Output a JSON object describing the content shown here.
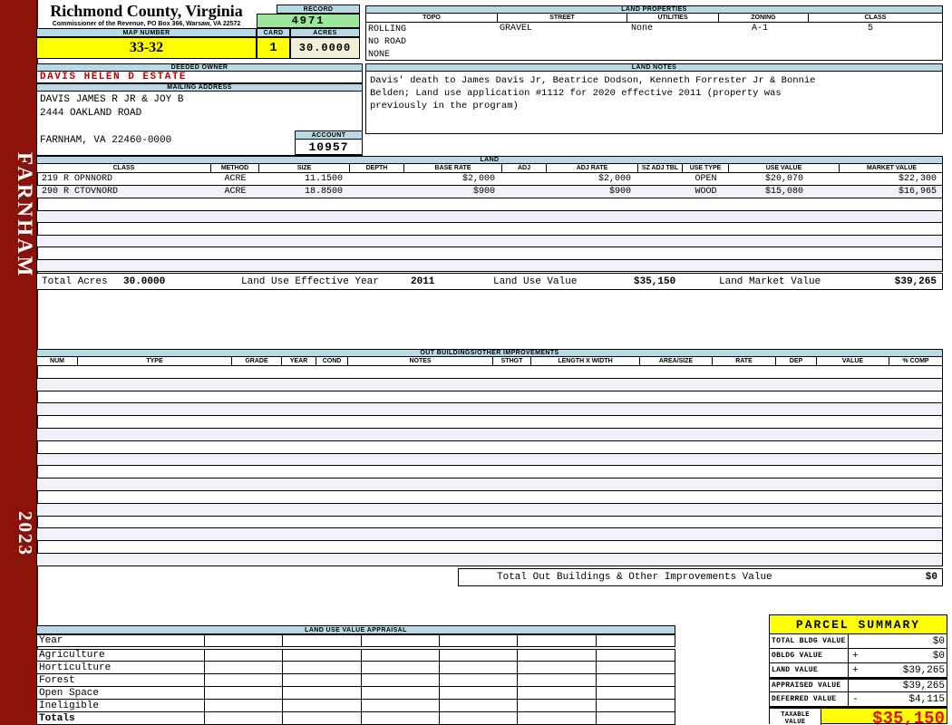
{
  "sidebar": {
    "district": "FARNHAM",
    "year": "2023"
  },
  "header": {
    "county_title": "Richmond County, Virginia",
    "county_subtitle": "Commissioner of the Revenue, PO Box 366, Warsaw, VA 22572",
    "record_label": "RECORD",
    "record_value": "4971",
    "map_number_label": "MAP NUMBER",
    "map_number_value": "33-32",
    "card_label": "CARD",
    "card_value": "1",
    "acres_label": "ACRES",
    "acres_value": "30.0000"
  },
  "land_properties": {
    "title": "LAND PROPERTIES",
    "columns": [
      "TOPO",
      "STREET",
      "UTILITIES",
      "ZONING",
      "CLASS"
    ],
    "topo_lines": [
      "ROLLING",
      "NO ROAD",
      "NONE"
    ],
    "street": "GRAVEL",
    "utilities": "None",
    "zoning": "A-1",
    "class": "5"
  },
  "owner": {
    "deeded_owner_label": "DEEDED OWNER",
    "deeded_owner": "DAVIS HELEN D ESTATE",
    "mailing_address_label": "MAILING ADDRESS",
    "address_lines": [
      "DAVIS JAMES R JR & JOY B",
      "2444 OAKLAND ROAD",
      "",
      "FARNHAM, VA 22460-0000"
    ],
    "account_label": "ACCOUNT",
    "account_value": "10957"
  },
  "land_notes": {
    "title": "LAND NOTES",
    "text": "Davis' death to James Davis Jr, Beatrice Dodson, Kenneth Forrester Jr & Bonnie\nBelden; Land use application #1112 for 2020 effective 2011 (property was\npreviously in the program)"
  },
  "land": {
    "title": "LAND",
    "columns": [
      "CLASS",
      "METHOD",
      "SIZE",
      "DEPTH",
      "BASE RATE",
      "ADJ",
      "ADJ RATE",
      "SZ ADJ TBL",
      "USE TYPE",
      "USE VALUE",
      "MARKET VALUE"
    ],
    "rows": [
      [
        "219 R OPNNORD",
        "ACRE",
        "11.1500",
        "",
        "$2,000",
        "",
        "$2,000",
        "",
        "OPEN",
        "$20,070",
        "$22,300"
      ],
      [
        "290 R CTOVNORD",
        "ACRE",
        "18.8500",
        "",
        "$900",
        "",
        "$900",
        "",
        "WOOD",
        "$15,080",
        "$16,965"
      ]
    ],
    "empty_row_count": 6,
    "totals": {
      "total_acres_label": "Total Acres",
      "total_acres": "30.0000",
      "effective_year_label": "Land Use Effective Year",
      "effective_year": "2011",
      "use_value_label": "Land Use Value",
      "use_value": "$35,150",
      "market_value_label": "Land Market Value",
      "market_value": "$39,265"
    }
  },
  "out_buildings": {
    "title": "OUT BUILDINGS/OTHER IMPROVEMENTS",
    "columns": [
      "NUM",
      "TYPE",
      "GRADE",
      "YEAR",
      "COND",
      "NOTES",
      "STHGT",
      "LENGTH X WIDTH",
      "AREA/SIZE",
      "RATE",
      "DEP",
      "VALUE",
      "% COMP"
    ],
    "empty_row_count": 16,
    "total_label": "Total Out Buildings & Other Improvements Value",
    "total_value": "$0"
  },
  "appraisal": {
    "title": "LAND USE VALUE APPRAISAL",
    "row_labels": [
      "Year",
      "Agriculture",
      "Horticulture",
      "Forest",
      "Open Space",
      "Ineligible",
      "Totals"
    ],
    "column_count": 6
  },
  "parcel_summary": {
    "title": "PARCEL SUMMARY",
    "rows": [
      {
        "label": "TOTAL BLDG VALUE",
        "op": "",
        "value": "$0",
        "sumline": false
      },
      {
        "label": "OBLDG VALUE",
        "op": "+",
        "value": "$0",
        "sumline": false
      },
      {
        "label": "LAND VALUE",
        "op": "+",
        "value": "$39,265",
        "sumline": false
      },
      {
        "label": "APPRAISED VALUE",
        "op": "",
        "value": "$39,265",
        "sumline": true
      },
      {
        "label": "DEFERRED VALUE",
        "op": "-",
        "value": "$4,115",
        "sumline": false
      }
    ],
    "taxable_label": "TAXABLE\nVALUE",
    "taxable_value": "$35,150"
  },
  "colors": {
    "spine_maroon": "#8B1209",
    "header_blue": "#B7DAE6",
    "record_green": "#9BE79B",
    "highlight_yellow": "#FFFF00",
    "acres_cream": "#F0EFDA",
    "owner_red": "#C00000",
    "taxable_red": "#E01000"
  }
}
